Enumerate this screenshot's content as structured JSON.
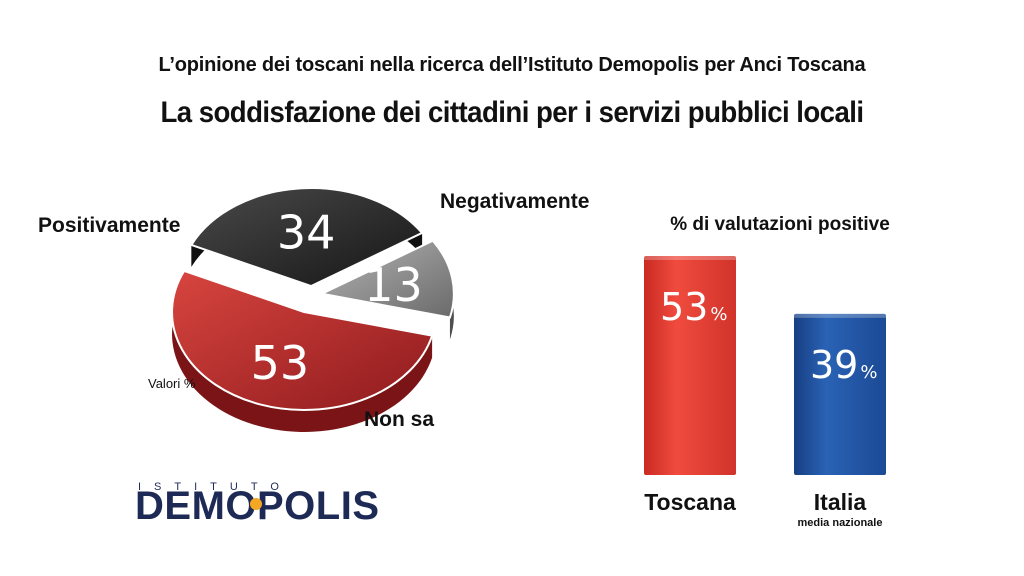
{
  "header": {
    "subtitle": "L’opinione dei toscani nella ricerca dell’Istituto Demopolis per Anci Toscana",
    "title": "La soddisfazione dei cittadini per i servizi pubblici locali"
  },
  "colors": {
    "positive": "#b3262a",
    "negative": "#2b2b2b",
    "non_sa": "#8c8c8c",
    "toscana_bar": "#e8352c",
    "italia_bar": "#1d4e9e",
    "logo": "#1d2a55",
    "logo_accent": "#f5a623"
  },
  "chart_data": [
    {
      "type": "pie",
      "note": "Valori %",
      "slices": [
        {
          "label": "Positivamente",
          "value": 53
        },
        {
          "label": "Negativamente",
          "value": 34
        },
        {
          "label": "Non sa",
          "value": 13
        }
      ]
    },
    {
      "type": "bar",
      "title": "% di valutazioni positive",
      "categories": [
        "Toscana",
        "Italia"
      ],
      "category_notes": [
        "",
        "media nazionale"
      ],
      "values": [
        53,
        39
      ],
      "unit": "%"
    }
  ],
  "logo": {
    "top": "ISTITUTO",
    "main": "DEMOPOLIS"
  }
}
